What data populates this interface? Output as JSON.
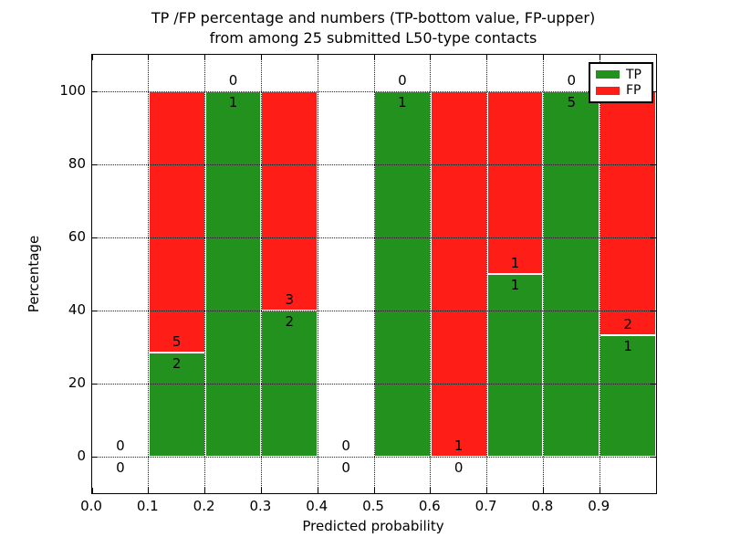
{
  "title": {
    "line1": "TP /FP percentage and numbers (TP-bottom value, FP-upper)",
    "line2": "from among 25 submitted L50-type contacts"
  },
  "axes": {
    "xlabel": "Predicted probability",
    "ylabel": "Percentage",
    "x_tick_labels": [
      "0.0",
      "0.1",
      "0.2",
      "0.3",
      "0.4",
      "0.5",
      "0.6",
      "0.7",
      "0.8",
      "0.9"
    ],
    "y_tick_labels": [
      "0",
      "20",
      "40",
      "60",
      "80",
      "100"
    ]
  },
  "legend": {
    "items": [
      {
        "label": "TP",
        "color": "#23911e"
      },
      {
        "label": "FP",
        "color": "#ff1d17"
      }
    ]
  },
  "colors": {
    "tp": "#23911e",
    "fp": "#ff1d17",
    "grid": "#1f1f1f",
    "text": "#000000",
    "background": "#ffffff"
  },
  "chart_data": {
    "type": "bar",
    "subtype": "stacked-percentage",
    "title": "TP /FP percentage and numbers (TP-bottom value, FP-upper) from among 25 submitted L50-type contacts",
    "xlabel": "Predicted probability",
    "ylabel": "Percentage",
    "xlim": [
      0.0,
      1.0
    ],
    "ylim": [
      -10,
      110
    ],
    "x_ticks": [
      0.0,
      0.1,
      0.2,
      0.3,
      0.4,
      0.5,
      0.6,
      0.7,
      0.8,
      0.9
    ],
    "y_ticks": [
      0,
      20,
      40,
      60,
      80,
      100
    ],
    "grid": true,
    "grid_style": "dotted",
    "legend_position": "upper right",
    "total_contacts": 25,
    "bin_edges": [
      0.0,
      0.1,
      0.2,
      0.3,
      0.4,
      0.5,
      0.6,
      0.7,
      0.8,
      0.9,
      1.0
    ],
    "series": [
      {
        "name": "TP",
        "color": "#23911e",
        "counts": [
          0,
          2,
          1,
          2,
          0,
          1,
          0,
          1,
          5,
          1
        ]
      },
      {
        "name": "FP",
        "color": "#ff1d17",
        "counts": [
          0,
          5,
          0,
          3,
          0,
          0,
          1,
          1,
          0,
          2
        ]
      }
    ],
    "tp_percent_by_bin": [
      null,
      28.57,
      100,
      40,
      null,
      100,
      0,
      50,
      100,
      33.33
    ]
  }
}
